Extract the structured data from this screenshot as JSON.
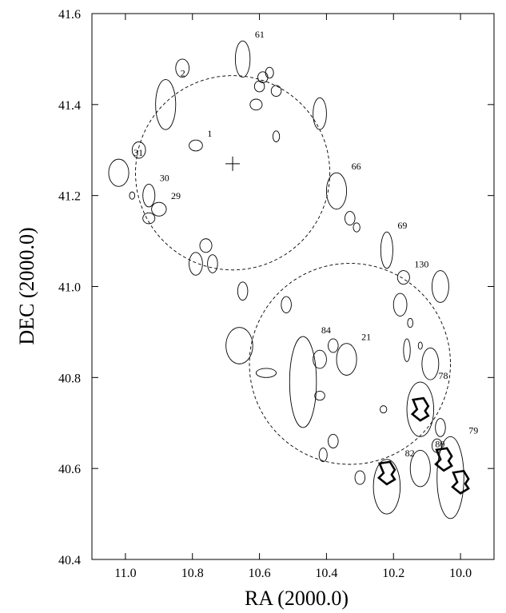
{
  "chart_data": {
    "type": "scatter",
    "xlabel": "RA (2000.0)",
    "ylabel": "DEC (2000.0)",
    "xlim": [
      11.1,
      9.9
    ],
    "ylim": [
      40.4,
      41.6
    ],
    "x_ticks": [
      11.0,
      10.8,
      10.6,
      10.4,
      10.2,
      10.0
    ],
    "x_tick_labels": [
      "11.0",
      "10.8",
      "10.6",
      "10.4",
      "10.2",
      "10.0"
    ],
    "y_ticks": [
      40.4,
      40.6,
      40.8,
      41.0,
      41.2,
      41.4,
      41.6
    ],
    "y_tick_labels": [
      "40.4",
      "40.6",
      "40.8",
      "41.0",
      "41.2",
      "41.4",
      "41.6"
    ],
    "grid": false,
    "center_marker": {
      "ra": 10.68,
      "dec": 41.27
    },
    "labeled_regions": [
      {
        "id": "61",
        "ra": 10.65,
        "dec": 41.5,
        "rx": 0.022,
        "ry": 0.04
      },
      {
        "id": "2",
        "ra": 10.88,
        "dec": 41.4,
        "rx": 0.03,
        "ry": 0.055
      },
      {
        "id": "1",
        "ra": 10.79,
        "dec": 41.31,
        "rx": 0.02,
        "ry": 0.012
      },
      {
        "id": "31",
        "ra": 11.02,
        "dec": 41.25,
        "rx": 0.03,
        "ry": 0.03
      },
      {
        "id": "30",
        "ra": 10.93,
        "dec": 41.2,
        "rx": 0.018,
        "ry": 0.025
      },
      {
        "id": "29",
        "ra": 10.9,
        "dec": 41.17,
        "rx": 0.022,
        "ry": 0.015
      },
      {
        "id": "66",
        "ra": 10.37,
        "dec": 41.21,
        "rx": 0.03,
        "ry": 0.04
      },
      {
        "id": "69",
        "ra": 10.22,
        "dec": 41.08,
        "rx": 0.018,
        "ry": 0.04
      },
      {
        "id": "130",
        "ra": 10.17,
        "dec": 41.02,
        "rx": 0.018,
        "ry": 0.015
      },
      {
        "id": "21",
        "ra": 10.34,
        "dec": 40.84,
        "rx": 0.03,
        "ry": 0.035
      },
      {
        "id": "78",
        "ra": 10.12,
        "dec": 40.73,
        "rx": 0.04,
        "ry": 0.06
      },
      {
        "id": "84",
        "ra": 10.47,
        "dec": 40.79,
        "rx": 0.04,
        "ry": 0.1
      },
      {
        "id": "82",
        "ra": 10.22,
        "dec": 40.56,
        "rx": 0.04,
        "ry": 0.06
      },
      {
        "id": "80",
        "ra": 10.12,
        "dec": 40.6,
        "rx": 0.03,
        "ry": 0.04
      },
      {
        "id": "79",
        "ra": 10.03,
        "dec": 40.58,
        "rx": 0.04,
        "ry": 0.09
      }
    ],
    "unlabeled_regions": [
      {
        "ra": 10.83,
        "dec": 41.48,
        "rx": 0.02,
        "ry": 0.02
      },
      {
        "ra": 10.96,
        "dec": 41.3,
        "rx": 0.02,
        "ry": 0.018
      },
      {
        "ra": 10.93,
        "dec": 41.15,
        "rx": 0.018,
        "ry": 0.012
      },
      {
        "ra": 10.98,
        "dec": 41.2,
        "rx": 0.008,
        "ry": 0.008
      },
      {
        "ra": 10.59,
        "dec": 41.46,
        "rx": 0.015,
        "ry": 0.012
      },
      {
        "ra": 10.57,
        "dec": 41.47,
        "rx": 0.012,
        "ry": 0.012
      },
      {
        "ra": 10.55,
        "dec": 41.43,
        "rx": 0.015,
        "ry": 0.012
      },
      {
        "ra": 10.6,
        "dec": 41.44,
        "rx": 0.015,
        "ry": 0.012
      },
      {
        "ra": 10.61,
        "dec": 41.4,
        "rx": 0.018,
        "ry": 0.012
      },
      {
        "ra": 10.55,
        "dec": 41.33,
        "rx": 0.01,
        "ry": 0.012
      },
      {
        "ra": 10.42,
        "dec": 41.38,
        "rx": 0.02,
        "ry": 0.035
      },
      {
        "ra": 10.33,
        "dec": 41.15,
        "rx": 0.015,
        "ry": 0.015
      },
      {
        "ra": 10.31,
        "dec": 41.13,
        "rx": 0.01,
        "ry": 0.01
      },
      {
        "ra": 10.76,
        "dec": 41.09,
        "rx": 0.018,
        "ry": 0.015
      },
      {
        "ra": 10.79,
        "dec": 41.05,
        "rx": 0.02,
        "ry": 0.025
      },
      {
        "ra": 10.74,
        "dec": 41.05,
        "rx": 0.015,
        "ry": 0.02
      },
      {
        "ra": 10.65,
        "dec": 40.99,
        "rx": 0.015,
        "ry": 0.02
      },
      {
        "ra": 10.52,
        "dec": 40.96,
        "rx": 0.015,
        "ry": 0.018
      },
      {
        "ra": 10.18,
        "dec": 40.96,
        "rx": 0.02,
        "ry": 0.025
      },
      {
        "ra": 10.06,
        "dec": 41.0,
        "rx": 0.025,
        "ry": 0.035
      },
      {
        "ra": 10.15,
        "dec": 40.92,
        "rx": 0.008,
        "ry": 0.01
      },
      {
        "ra": 10.16,
        "dec": 40.86,
        "rx": 0.01,
        "ry": 0.025
      },
      {
        "ra": 10.12,
        "dec": 40.87,
        "rx": 0.006,
        "ry": 0.008
      },
      {
        "ra": 10.09,
        "dec": 40.83,
        "rx": 0.025,
        "ry": 0.035
      },
      {
        "ra": 10.66,
        "dec": 40.87,
        "rx": 0.04,
        "ry": 0.04
      },
      {
        "ra": 10.58,
        "dec": 40.81,
        "rx": 0.03,
        "ry": 0.01
      },
      {
        "ra": 10.42,
        "dec": 40.84,
        "rx": 0.02,
        "ry": 0.02
      },
      {
        "ra": 10.38,
        "dec": 40.87,
        "rx": 0.015,
        "ry": 0.015
      },
      {
        "ra": 10.42,
        "dec": 40.76,
        "rx": 0.015,
        "ry": 0.01
      },
      {
        "ra": 10.23,
        "dec": 40.73,
        "rx": 0.01,
        "ry": 0.008
      },
      {
        "ra": 10.38,
        "dec": 40.66,
        "rx": 0.015,
        "ry": 0.015
      },
      {
        "ra": 10.41,
        "dec": 40.63,
        "rx": 0.012,
        "ry": 0.015
      },
      {
        "ra": 10.3,
        "dec": 40.58,
        "rx": 0.015,
        "ry": 0.015
      },
      {
        "ra": 10.07,
        "dec": 40.65,
        "rx": 0.015,
        "ry": 0.015
      },
      {
        "ra": 10.06,
        "dec": 40.69,
        "rx": 0.015,
        "ry": 0.02
      }
    ],
    "highlighted_sources": [
      {
        "ra": 10.12,
        "dec": 40.73
      },
      {
        "ra": 10.22,
        "dec": 40.59
      },
      {
        "ra": 10.05,
        "dec": 40.62
      },
      {
        "ra": 10.0,
        "dec": 40.57
      }
    ],
    "field_circles": [
      {
        "ra": 10.68,
        "dec": 41.25,
        "radius_deg": 0.29
      },
      {
        "ra": 10.33,
        "dec": 40.83,
        "radius_deg": 0.3
      }
    ]
  }
}
